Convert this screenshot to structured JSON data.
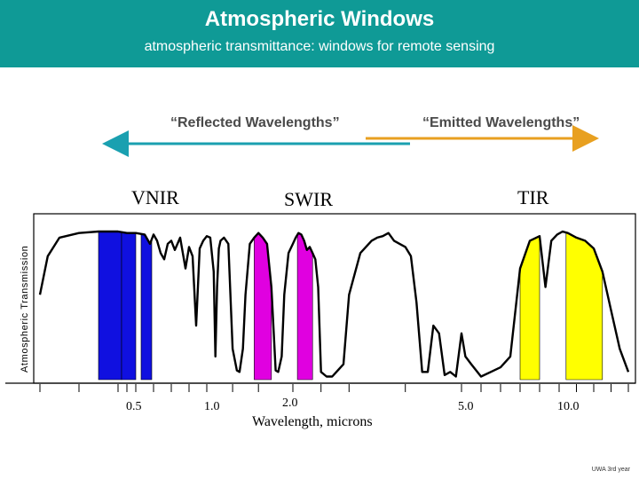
{
  "header": {
    "title": "Atmospheric Windows",
    "subtitle": "atmospheric transmittance: windows for remote sensing"
  },
  "bands": {
    "reflected_label": "“Reflected Wavelengths”",
    "emitted_label": "“Emitted Wavelengths”",
    "reflected_color": "#1aa0b0",
    "emitted_color": "#e8a020"
  },
  "regions": [
    {
      "label": "VNIR"
    },
    {
      "label": "SWIR"
    },
    {
      "label": "TIR"
    }
  ],
  "footer": {
    "text": "UWA 3rd year"
  },
  "chart_data": {
    "type": "line",
    "xlabel": "Wavelength, microns",
    "ylabel": "Atmospheric Transmission",
    "x_ticks": [
      "0.5",
      "1.0",
      "2.0",
      "5.0",
      "10.0"
    ],
    "x_scale": "non-linear",
    "grid": false,
    "series": [
      {
        "x": [
          0.3,
          0.32,
          0.35,
          0.4,
          0.45,
          0.5,
          0.55,
          0.6,
          0.65,
          0.68,
          0.7,
          0.72,
          0.74,
          0.76,
          0.78,
          0.8,
          0.82,
          0.85,
          0.88,
          0.9,
          0.92,
          0.94,
          0.96,
          0.98,
          1.0,
          1.04,
          1.08,
          1.1,
          1.12,
          1.14,
          1.16,
          1.2,
          1.25,
          1.3,
          1.35,
          1.38,
          1.42,
          1.45,
          1.5,
          1.55,
          1.6,
          1.65,
          1.7,
          1.75,
          1.8,
          1.83,
          1.87,
          1.9,
          1.95,
          2.0,
          2.05,
          2.1,
          2.15,
          2.2,
          2.25,
          2.3,
          2.35,
          2.4,
          2.45,
          2.5,
          2.6,
          2.7,
          2.9,
          3.0,
          3.2,
          3.4,
          3.5,
          3.6,
          3.7,
          3.8,
          3.9,
          4.0,
          4.1,
          4.2,
          4.3,
          4.4,
          4.5,
          4.6,
          4.7,
          4.8,
          4.9,
          5.0,
          5.2,
          5.5,
          6.0,
          6.5,
          7.0,
          7.5,
          8.0,
          8.5,
          9.0,
          9.3,
          9.6,
          9.9,
          10.2,
          10.5,
          11.0,
          11.5,
          12.0,
          12.5,
          13.0,
          13.5,
          14.0
        ],
        "y": [
          0.55,
          0.8,
          0.92,
          0.95,
          0.96,
          0.96,
          0.95,
          0.95,
          0.94,
          0.88,
          0.94,
          0.9,
          0.82,
          0.78,
          0.88,
          0.9,
          0.84,
          0.92,
          0.72,
          0.86,
          0.8,
          0.35,
          0.85,
          0.9,
          0.93,
          0.92,
          0.7,
          0.15,
          0.6,
          0.85,
          0.9,
          0.92,
          0.88,
          0.2,
          0.06,
          0.05,
          0.2,
          0.55,
          0.88,
          0.92,
          0.95,
          0.92,
          0.88,
          0.6,
          0.06,
          0.05,
          0.15,
          0.55,
          0.82,
          0.88,
          0.92,
          0.95,
          0.94,
          0.9,
          0.84,
          0.86,
          0.82,
          0.78,
          0.6,
          0.05,
          0.02,
          0.02,
          0.1,
          0.55,
          0.82,
          0.9,
          0.92,
          0.93,
          0.95,
          0.9,
          0.88,
          0.86,
          0.8,
          0.5,
          0.05,
          0.05,
          0.35,
          0.3,
          0.03,
          0.05,
          0.02,
          0.3,
          0.15,
          0.1,
          0.02,
          0.05,
          0.08,
          0.15,
          0.72,
          0.9,
          0.93,
          0.6,
          0.9,
          0.94,
          0.96,
          0.95,
          0.92,
          0.9,
          0.85,
          0.7,
          0.45,
          0.2,
          0.05
        ]
      }
    ],
    "highlighted_bands": [
      {
        "region": "VNIR",
        "color": "#1010e0",
        "ranges": [
          [
            0.45,
            0.52
          ],
          [
            0.52,
            0.6
          ],
          [
            0.63,
            0.69
          ]
        ]
      },
      {
        "region": "SWIR",
        "color": "#e000e0",
        "ranges": [
          [
            1.55,
            1.75
          ],
          [
            2.08,
            2.35
          ]
        ]
      },
      {
        "region": "TIR",
        "color": "#ffff00",
        "ranges": [
          [
            8.0,
            9.0
          ],
          [
            10.4,
            12.5
          ]
        ]
      }
    ]
  }
}
